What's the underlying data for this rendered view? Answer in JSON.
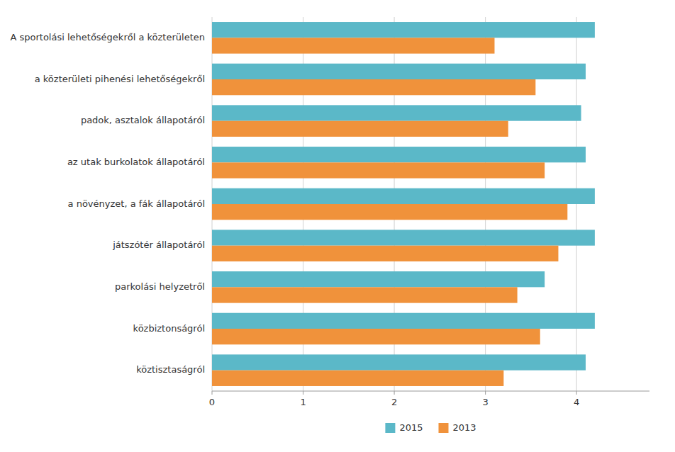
{
  "chart_data": {
    "type": "bar",
    "orientation": "horizontal",
    "categories": [
      "köztisztaságról",
      "közbiztonságról",
      "parkolási helyzetről",
      "játszótér állapotáról",
      "a növényzet, a fák állapotáról",
      "az utak burkolatok állapotáról",
      "padok, asztalok állapotáról",
      "a közterületi pihenési lehetőségekről",
      "A sportolási lehetőségekről a közterületen"
    ],
    "series": [
      {
        "name": "2015",
        "color": "#5BB8C8",
        "values": [
          4.1,
          4.2,
          3.65,
          4.2,
          4.2,
          4.1,
          4.05,
          4.1,
          4.2
        ]
      },
      {
        "name": "2013",
        "color": "#F0923B",
        "values": [
          3.2,
          3.6,
          3.35,
          3.8,
          3.9,
          3.65,
          3.25,
          3.55,
          3.1
        ]
      }
    ],
    "xlim": [
      0,
      4.8
    ],
    "xticks": [
      0,
      1,
      2,
      3,
      4
    ],
    "grid": true,
    "legend": "bottom"
  }
}
